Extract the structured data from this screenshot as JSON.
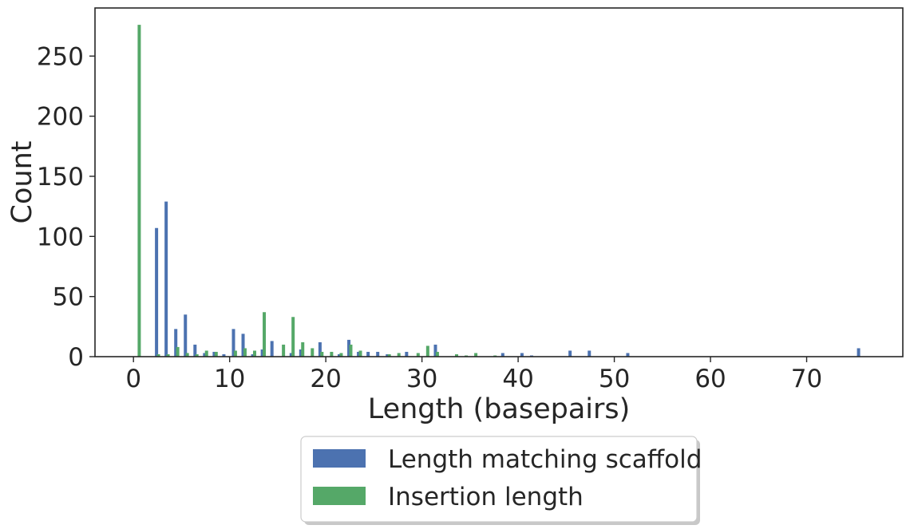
{
  "chart_data": {
    "type": "bar",
    "title": "",
    "xlabel": "Length (basepairs)",
    "ylabel": "Count",
    "xlim": [
      -4,
      80
    ],
    "ylim": [
      0,
      290
    ],
    "xticks": [
      0,
      10,
      20,
      30,
      40,
      50,
      60,
      70
    ],
    "yticks": [
      0,
      50,
      100,
      150,
      200,
      250
    ],
    "grid": false,
    "legend_position": "bottom-center-outside",
    "series": [
      {
        "name": "Length matching scaffold",
        "color": "#4c72b0",
        "points": [
          {
            "x": 2.4,
            "y": 107
          },
          {
            "x": 3.4,
            "y": 129
          },
          {
            "x": 4.4,
            "y": 23
          },
          {
            "x": 5.4,
            "y": 35
          },
          {
            "x": 6.4,
            "y": 10
          },
          {
            "x": 7.4,
            "y": 3
          },
          {
            "x": 8.4,
            "y": 4
          },
          {
            "x": 9.4,
            "y": 2
          },
          {
            "x": 10.4,
            "y": 23
          },
          {
            "x": 11.4,
            "y": 19
          },
          {
            "x": 12.4,
            "y": 2
          },
          {
            "x": 13.4,
            "y": 6
          },
          {
            "x": 14.4,
            "y": 13
          },
          {
            "x": 16.4,
            "y": 3
          },
          {
            "x": 17.4,
            "y": 6
          },
          {
            "x": 19.4,
            "y": 12
          },
          {
            "x": 21.4,
            "y": 2
          },
          {
            "x": 22.4,
            "y": 14
          },
          {
            "x": 23.4,
            "y": 4
          },
          {
            "x": 24.4,
            "y": 4
          },
          {
            "x": 25.4,
            "y": 4
          },
          {
            "x": 26.4,
            "y": 2
          },
          {
            "x": 28.4,
            "y": 4
          },
          {
            "x": 31.4,
            "y": 10
          },
          {
            "x": 38.4,
            "y": 3
          },
          {
            "x": 40.4,
            "y": 3
          },
          {
            "x": 41.4,
            "y": 1
          },
          {
            "x": 45.4,
            "y": 5
          },
          {
            "x": 47.4,
            "y": 5
          },
          {
            "x": 51.4,
            "y": 3
          },
          {
            "x": 75.4,
            "y": 7
          }
        ]
      },
      {
        "name": "Insertion length",
        "color": "#55a868",
        "points": [
          {
            "x": 0.6,
            "y": 276
          },
          {
            "x": 2.6,
            "y": 2
          },
          {
            "x": 3.6,
            "y": 2
          },
          {
            "x": 4.6,
            "y": 8
          },
          {
            "x": 5.6,
            "y": 3
          },
          {
            "x": 6.6,
            "y": 2
          },
          {
            "x": 7.6,
            "y": 5
          },
          {
            "x": 8.6,
            "y": 4
          },
          {
            "x": 10.6,
            "y": 5
          },
          {
            "x": 11.6,
            "y": 7
          },
          {
            "x": 12.6,
            "y": 5
          },
          {
            "x": 13.6,
            "y": 37
          },
          {
            "x": 15.6,
            "y": 10
          },
          {
            "x": 16.6,
            "y": 33
          },
          {
            "x": 17.6,
            "y": 12
          },
          {
            "x": 18.6,
            "y": 7
          },
          {
            "x": 19.6,
            "y": 4
          },
          {
            "x": 20.6,
            "y": 4
          },
          {
            "x": 21.6,
            "y": 3
          },
          {
            "x": 22.6,
            "y": 10
          },
          {
            "x": 23.6,
            "y": 5
          },
          {
            "x": 26.6,
            "y": 2
          },
          {
            "x": 27.6,
            "y": 3
          },
          {
            "x": 29.6,
            "y": 3
          },
          {
            "x": 30.6,
            "y": 9
          },
          {
            "x": 31.6,
            "y": 4
          },
          {
            "x": 33.6,
            "y": 2
          },
          {
            "x": 34.6,
            "y": 1
          },
          {
            "x": 35.6,
            "y": 3
          },
          {
            "x": 37.6,
            "y": 1
          }
        ]
      }
    ]
  }
}
